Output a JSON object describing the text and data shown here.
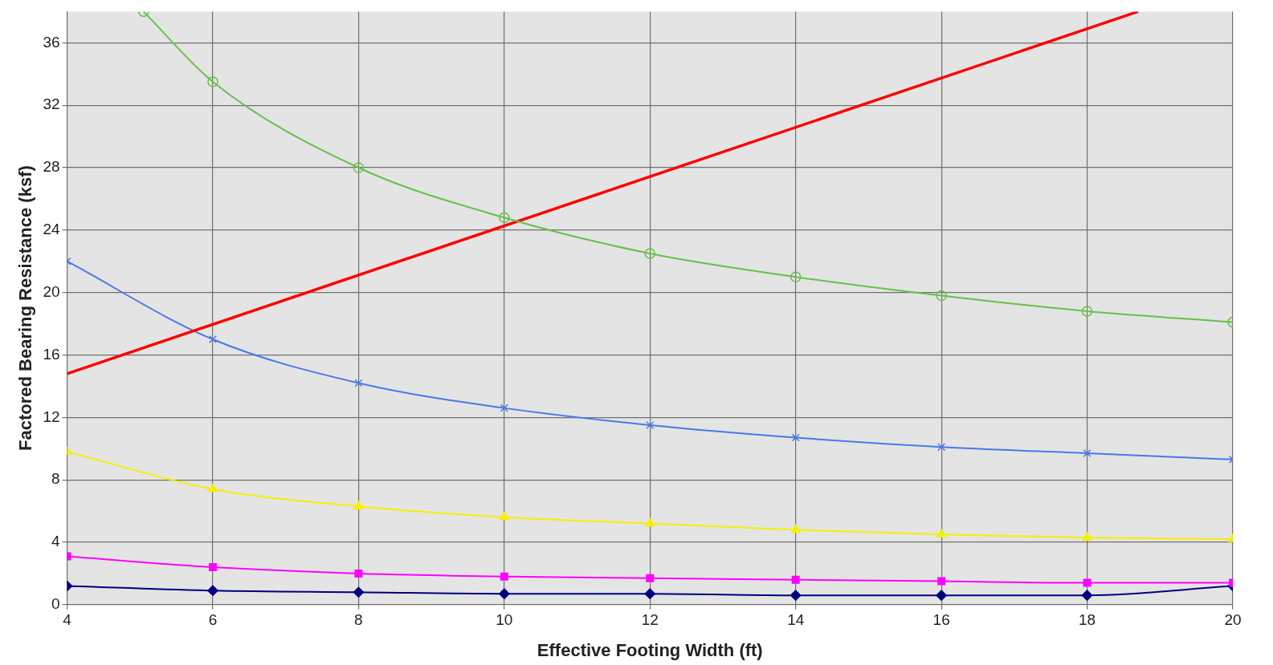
{
  "chart_data": {
    "type": "line",
    "xlabel": "Effective Footing Width (ft)",
    "ylabel": "Factored Bearing Resistance (ksf)",
    "x": [
      4,
      6,
      8,
      10,
      12,
      14,
      16,
      18,
      20
    ],
    "xlim": [
      4,
      20
    ],
    "xticks": [
      4,
      6,
      8,
      10,
      12,
      14,
      16,
      18,
      20
    ],
    "ylim": [
      0,
      38
    ],
    "yticks": [
      0,
      4,
      8,
      12,
      16,
      20,
      24,
      28,
      32,
      36
    ],
    "grid": true,
    "legend": false,
    "series": [
      {
        "color": "#66c04a",
        "marker": "circle",
        "x": [
          5.05,
          6,
          8,
          10,
          12,
          14,
          16,
          18,
          20
        ],
        "values": [
          38,
          33.5,
          28,
          24.8,
          22.5,
          21,
          19.8,
          18.8,
          18.1
        ]
      },
      {
        "color": "#ff0000",
        "marker": "none",
        "x": [
          4,
          18.7
        ],
        "values": [
          14.8,
          38
        ]
      },
      {
        "color": "#4a78e8",
        "marker": "cross",
        "values": [
          22,
          17,
          14.2,
          12.6,
          11.5,
          10.7,
          10.1,
          9.7,
          9.3
        ]
      },
      {
        "color": "#f5f000",
        "marker": "triangle",
        "values": [
          9.8,
          7.4,
          6.3,
          5.6,
          5.2,
          4.8,
          4.5,
          4.3,
          4.2
        ]
      },
      {
        "color": "#ff00ff",
        "marker": "square",
        "values": [
          3.1,
          2.4,
          2.0,
          1.8,
          1.7,
          1.6,
          1.5,
          1.4,
          1.4
        ]
      },
      {
        "color": "#000080",
        "marker": "diamond",
        "values": [
          1.2,
          0.9,
          0.8,
          0.7,
          0.7,
          0.6,
          0.6,
          0.6,
          1.2
        ]
      }
    ]
  }
}
